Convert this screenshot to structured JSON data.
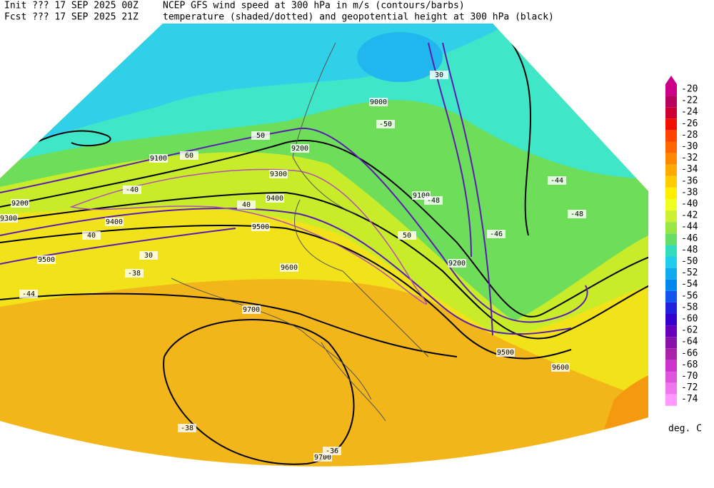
{
  "header": {
    "init": "Init  ??? 17 SEP 2025 00Z",
    "init_title": "NCEP GFS wind speed at 300 hPa in m/s (contours/barbs)",
    "fcst": "Fcst ??? 17 SEP 2025 21Z",
    "fcst_title": "temperature (shaded/dotted) and geopotential height at 300 hPa (black)"
  },
  "colorbar": {
    "labels": [
      -20,
      -22,
      -24,
      -26,
      -28,
      -30,
      -32,
      -34,
      -36,
      -38,
      -40,
      -42,
      -44,
      -46,
      -48,
      -50,
      -52,
      -54,
      -56,
      -58,
      -60,
      -62,
      -64,
      -66,
      -68,
      -70,
      -72,
      -74
    ],
    "colors": [
      "#cc0088",
      "#b8005e",
      "#cc0033",
      "#ee1100",
      "#ff4400",
      "#ff6600",
      "#ff8800",
      "#ffaa00",
      "#ffcc00",
      "#ffee00",
      "#eeff22",
      "#ccf033",
      "#99e644",
      "#66dd66",
      "#33ddbb",
      "#22ccee",
      "#11aaee",
      "#0088ee",
      "#1155ee",
      "#2222dd",
      "#3300cc",
      "#6600bb",
      "#8811aa",
      "#aa22aa",
      "#cc33cc",
      "#dd55dd",
      "#ee77ee",
      "#ff99ff"
    ],
    "unit": "deg. C"
  },
  "map_labels": [
    "9000",
    "9100",
    "9200",
    "9300",
    "9400",
    "9500",
    "9600",
    "9700",
    "9700",
    "9200",
    "9300",
    "9400",
    "9500",
    "9200",
    "9100",
    "9600",
    "9500",
    "30",
    "40",
    "50",
    "60",
    "30",
    "40",
    "50",
    "-38",
    "-40",
    "-44",
    "-46",
    "-48",
    "-50",
    "-36",
    "-38",
    "-44",
    "-48"
  ]
}
